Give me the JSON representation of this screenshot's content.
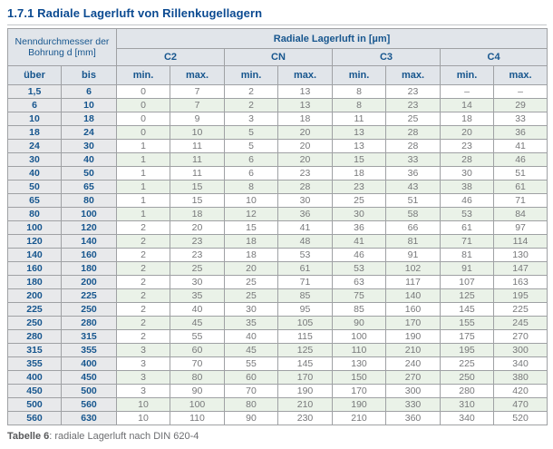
{
  "page": {
    "title": "1.7.1 Radiale Lagerluft von Rillenkugellagern",
    "caption_label": "Tabelle 6",
    "caption_text": ": radiale Lagerluft nach DIN 620-4"
  },
  "table": {
    "header": {
      "bore_diameter": "Nenndurchmesser der Bohrung d [mm]",
      "radial_clearance": "Radiale Lagerluft in [µm]",
      "classes": [
        "C2",
        "CN",
        "C3",
        "C4"
      ],
      "over": "über",
      "to": "bis",
      "min": "min.",
      "max": "max."
    },
    "rows": [
      [
        "1,5",
        "6",
        "0",
        "7",
        "2",
        "13",
        "8",
        "23",
        "–",
        "–"
      ],
      [
        "6",
        "10",
        "0",
        "7",
        "2",
        "13",
        "8",
        "23",
        "14",
        "29"
      ],
      [
        "10",
        "18",
        "0",
        "9",
        "3",
        "18",
        "11",
        "25",
        "18",
        "33"
      ],
      [
        "18",
        "24",
        "0",
        "10",
        "5",
        "20",
        "13",
        "28",
        "20",
        "36"
      ],
      [
        "24",
        "30",
        "1",
        "11",
        "5",
        "20",
        "13",
        "28",
        "23",
        "41"
      ],
      [
        "30",
        "40",
        "1",
        "11",
        "6",
        "20",
        "15",
        "33",
        "28",
        "46"
      ],
      [
        "40",
        "50",
        "1",
        "11",
        "6",
        "23",
        "18",
        "36",
        "30",
        "51"
      ],
      [
        "50",
        "65",
        "1",
        "15",
        "8",
        "28",
        "23",
        "43",
        "38",
        "61"
      ],
      [
        "65",
        "80",
        "1",
        "15",
        "10",
        "30",
        "25",
        "51",
        "46",
        "71"
      ],
      [
        "80",
        "100",
        "1",
        "18",
        "12",
        "36",
        "30",
        "58",
        "53",
        "84"
      ],
      [
        "100",
        "120",
        "2",
        "20",
        "15",
        "41",
        "36",
        "66",
        "61",
        "97"
      ],
      [
        "120",
        "140",
        "2",
        "23",
        "18",
        "48",
        "41",
        "81",
        "71",
        "114"
      ],
      [
        "140",
        "160",
        "2",
        "23",
        "18",
        "53",
        "46",
        "91",
        "81",
        "130"
      ],
      [
        "160",
        "180",
        "2",
        "25",
        "20",
        "61",
        "53",
        "102",
        "91",
        "147"
      ],
      [
        "180",
        "200",
        "2",
        "30",
        "25",
        "71",
        "63",
        "117",
        "107",
        "163"
      ],
      [
        "200",
        "225",
        "2",
        "35",
        "25",
        "85",
        "75",
        "140",
        "125",
        "195"
      ],
      [
        "225",
        "250",
        "2",
        "40",
        "30",
        "95",
        "85",
        "160",
        "145",
        "225"
      ],
      [
        "250",
        "280",
        "2",
        "45",
        "35",
        "105",
        "90",
        "170",
        "155",
        "245"
      ],
      [
        "280",
        "315",
        "2",
        "55",
        "40",
        "115",
        "100",
        "190",
        "175",
        "270"
      ],
      [
        "315",
        "355",
        "3",
        "60",
        "45",
        "125",
        "110",
        "210",
        "195",
        "300"
      ],
      [
        "355",
        "400",
        "3",
        "70",
        "55",
        "145",
        "130",
        "240",
        "225",
        "340"
      ],
      [
        "400",
        "450",
        "3",
        "80",
        "60",
        "170",
        "150",
        "270",
        "250",
        "380"
      ],
      [
        "450",
        "500",
        "3",
        "90",
        "70",
        "190",
        "170",
        "300",
        "280",
        "420"
      ],
      [
        "500",
        "560",
        "10",
        "100",
        "80",
        "210",
        "190",
        "330",
        "310",
        "470"
      ],
      [
        "560",
        "630",
        "10",
        "110",
        "90",
        "230",
        "210",
        "360",
        "340",
        "520"
      ]
    ]
  },
  "colors": {
    "accent_blue": "#17568e",
    "title_blue": "#0b4a91",
    "header_bg": "#e1e5ea",
    "left_column_bg": "#e8e9eb",
    "stripe_green": "#eaf2e8",
    "border_gray": "#9fa1a4",
    "value_text_gray": "#77787a"
  }
}
